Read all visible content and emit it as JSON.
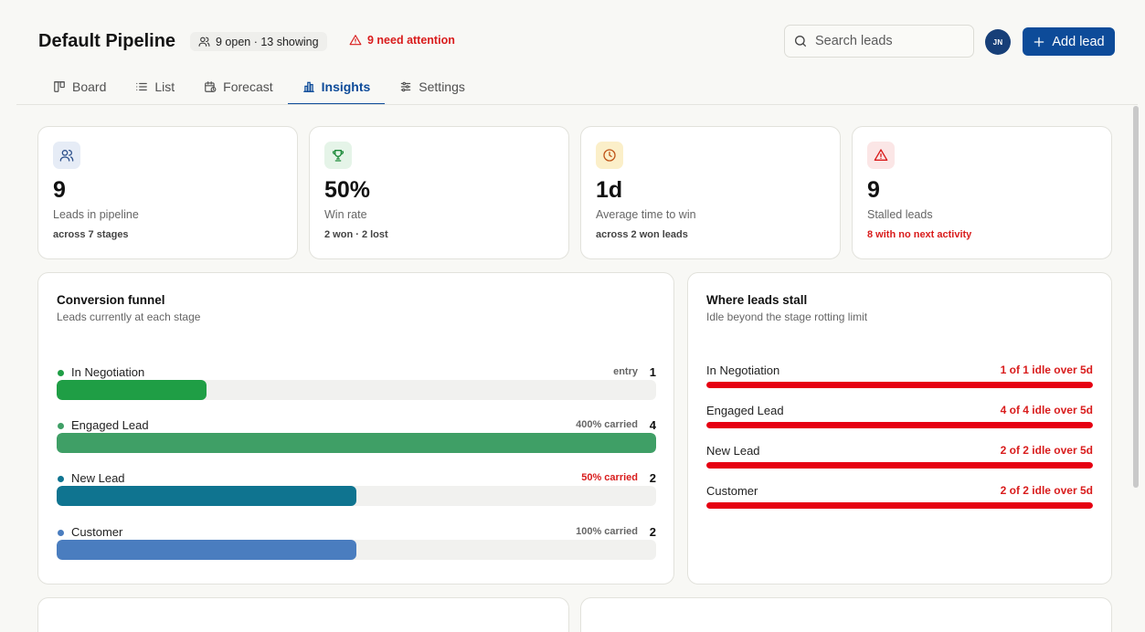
{
  "header": {
    "title": "Default Pipeline",
    "count_badge": "9 open · 13 showing",
    "attention": "9 need attention",
    "search_placeholder": "Search leads",
    "avatar_initials": "JN",
    "add_button": "Add lead"
  },
  "tabs": [
    {
      "label": "Board",
      "icon": "board-icon"
    },
    {
      "label": "List",
      "icon": "list-icon"
    },
    {
      "label": "Forecast",
      "icon": "calendar-icon"
    },
    {
      "label": "Insights",
      "icon": "bar-chart-icon",
      "active": true
    },
    {
      "label": "Settings",
      "icon": "sliders-icon"
    }
  ],
  "stats": [
    {
      "value": "9",
      "label": "Leads in pipeline",
      "sub": "across 7 stages",
      "icon": "users-icon",
      "color": "#2b4f8a"
    },
    {
      "value": "50%",
      "label": "Win rate",
      "sub": "2 won · 2 lost",
      "icon": "trophy-icon",
      "color": "#1d8a3a"
    },
    {
      "value": "1d",
      "label": "Average time to win",
      "sub": "across 2 won leads",
      "icon": "clock-icon",
      "color": "#c0561a"
    },
    {
      "value": "9",
      "label": "Stalled leads",
      "sub": "8 with no next activity",
      "icon": "warning-icon",
      "color": "#d91c1c"
    }
  ],
  "funnel": {
    "title": "Conversion funnel",
    "subtitle": "Leads currently at each stage",
    "max": 4,
    "rows": [
      {
        "name": "In Negotiation",
        "carried": "entry",
        "count": "1",
        "value": 1,
        "color": "#1f9e45",
        "warn": false
      },
      {
        "name": "Engaged Lead",
        "carried": "400% carried",
        "count": "4",
        "value": 4,
        "color": "#3f9f66",
        "warn": false
      },
      {
        "name": "New Lead",
        "carried": "50% carried",
        "count": "2",
        "value": 2,
        "color": "#0f7490",
        "warn": true
      },
      {
        "name": "Customer",
        "carried": "100% carried",
        "count": "2",
        "value": 2,
        "color": "#4a7dbf",
        "warn": false
      }
    ]
  },
  "stall": {
    "title": "Where leads stall",
    "subtitle": "Idle beyond the stage rotting limit",
    "rows": [
      {
        "name": "In Negotiation",
        "idle": "1 of 1 idle over 5d",
        "ratio": 1
      },
      {
        "name": "Engaged Lead",
        "idle": "4 of 4 idle over 5d",
        "ratio": 1
      },
      {
        "name": "New Lead",
        "idle": "2 of 2 idle over 5d",
        "ratio": 1
      },
      {
        "name": "Customer",
        "idle": "2 of 2 idle over 5d",
        "ratio": 1
      }
    ]
  }
}
